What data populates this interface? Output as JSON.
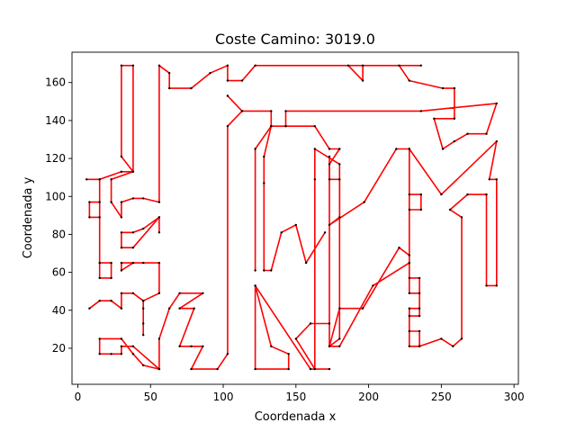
{
  "chart_data": {
    "type": "line",
    "title": "Coste Camino: 3019.0",
    "xlabel": "Coordenada x",
    "ylabel": "Coordenada y",
    "xlim": [
      -4,
      303
    ],
    "ylim": [
      1,
      176
    ],
    "xticks": [
      0,
      50,
      100,
      150,
      200,
      250,
      300
    ],
    "yticks": [
      20,
      40,
      60,
      80,
      100,
      120,
      140,
      160
    ],
    "grid": false,
    "colors": {
      "path": "#ff0000",
      "points": "#000000"
    },
    "series": [
      {
        "points": [
          [
            6,
            109
          ],
          [
            15,
            109
          ],
          [
            15,
            57
          ],
          [
            23,
            57
          ],
          [
            23,
            65
          ],
          [
            15,
            65
          ],
          [
            15,
            89
          ],
          [
            8,
            89
          ],
          [
            8,
            97
          ],
          [
            15,
            97
          ],
          [
            15,
            109
          ],
          [
            30,
            113
          ],
          [
            38,
            113
          ],
          [
            30,
            121
          ],
          [
            30,
            169
          ],
          [
            38,
            169
          ],
          [
            38,
            113
          ],
          [
            23,
            109
          ],
          [
            23,
            97
          ],
          [
            30,
            89
          ],
          [
            30,
            97
          ],
          [
            38,
            99
          ],
          [
            45,
            99
          ],
          [
            56,
            97
          ],
          [
            56,
            169
          ],
          [
            63,
            165
          ],
          [
            63,
            157
          ],
          [
            78,
            157
          ],
          [
            91,
            165
          ],
          [
            103,
            169
          ],
          [
            103,
            161
          ],
          [
            113,
            161
          ],
          [
            122,
            169
          ],
          [
            196,
            169
          ],
          [
            196,
            161
          ],
          [
            186,
            169
          ],
          [
            236,
            169
          ],
          [
            221,
            169
          ],
          [
            228,
            161
          ],
          [
            251,
            157
          ],
          [
            259,
            157
          ],
          [
            259,
            141
          ],
          [
            245,
            141
          ],
          [
            251,
            125
          ],
          [
            259,
            129
          ],
          [
            268,
            133
          ],
          [
            281,
            133
          ],
          [
            288,
            149
          ],
          [
            236,
            145
          ],
          [
            143,
            145
          ],
          [
            143,
            137
          ],
          [
            163,
            137
          ],
          [
            173,
            125
          ],
          [
            180,
            125
          ],
          [
            173,
            117
          ],
          [
            173,
            109
          ],
          [
            180,
            109
          ],
          [
            180,
            89
          ],
          [
            173,
            85
          ],
          [
            197,
            97
          ],
          [
            219,
            125
          ],
          [
            228,
            125
          ],
          [
            228,
            69
          ],
          [
            221,
            73
          ],
          [
            196,
            41
          ],
          [
            180,
            41
          ],
          [
            173,
            21
          ],
          [
            180,
            21
          ],
          [
            203,
            53
          ],
          [
            228,
            65
          ],
          [
            228,
            57
          ],
          [
            235,
            57
          ],
          [
            235,
            41
          ],
          [
            228,
            41
          ],
          [
            228,
            21
          ],
          [
            235,
            21
          ],
          [
            235,
            29
          ],
          [
            228,
            29
          ],
          [
            228,
            37
          ],
          [
            235,
            37
          ],
          [
            235,
            49
          ],
          [
            228,
            49
          ],
          [
            228,
            93
          ],
          [
            236,
            93
          ],
          [
            236,
            101
          ],
          [
            228,
            101
          ],
          [
            228,
            125
          ],
          [
            250,
            101
          ],
          [
            288,
            129
          ],
          [
            283,
            109
          ],
          [
            288,
            109
          ],
          [
            288,
            53
          ],
          [
            281,
            53
          ],
          [
            281,
            101
          ],
          [
            268,
            101
          ],
          [
            256,
            93
          ],
          [
            264,
            89
          ],
          [
            264,
            25
          ],
          [
            258,
            21
          ],
          [
            250,
            25
          ],
          [
            235,
            21
          ]
        ]
      },
      {
        "points": [
          [
            113,
            145
          ],
          [
            133,
            145
          ],
          [
            133,
            137
          ],
          [
            143,
            137
          ]
        ]
      },
      {
        "points": [
          [
            103,
            153
          ],
          [
            113,
            145
          ],
          [
            103,
            137
          ],
          [
            103,
            17
          ],
          [
            96,
            9
          ],
          [
            78,
            9
          ],
          [
            86,
            21
          ],
          [
            78,
            21
          ],
          [
            70,
            21
          ],
          [
            80,
            41
          ],
          [
            70,
            41
          ],
          [
            86,
            49
          ],
          [
            70,
            49
          ],
          [
            63,
            41
          ],
          [
            56,
            25
          ],
          [
            56,
            9
          ],
          [
            38,
            21
          ],
          [
            30,
            21
          ],
          [
            30,
            17
          ],
          [
            23,
            17
          ],
          [
            15,
            17
          ],
          [
            15,
            25
          ],
          [
            30,
            25
          ],
          [
            38,
            17
          ],
          [
            45,
            11
          ],
          [
            56,
            9
          ]
        ]
      },
      {
        "points": [
          [
            56,
            81
          ],
          [
            56,
            89
          ],
          [
            38,
            73
          ],
          [
            30,
            73
          ],
          [
            30,
            81
          ],
          [
            38,
            81
          ],
          [
            45,
            83
          ],
          [
            56,
            89
          ]
        ]
      },
      {
        "points": [
          [
            8,
            41
          ],
          [
            15,
            45
          ],
          [
            23,
            45
          ],
          [
            30,
            41
          ],
          [
            30,
            49
          ],
          [
            38,
            49
          ],
          [
            45,
            45
          ],
          [
            45,
            41
          ],
          [
            45,
            27
          ],
          [
            45,
            33
          ],
          [
            45,
            45
          ],
          [
            56,
            49
          ],
          [
            56,
            65
          ],
          [
            45,
            65
          ],
          [
            38,
            65
          ],
          [
            30,
            61
          ],
          [
            30,
            65
          ],
          [
            38,
            65
          ]
        ]
      },
      {
        "points": [
          [
            122,
            53
          ],
          [
            122,
            9
          ],
          [
            145,
            9
          ],
          [
            145,
            17
          ],
          [
            133,
            21
          ],
          [
            122,
            53
          ],
          [
            160,
            9
          ],
          [
            173,
            9
          ]
        ]
      },
      {
        "points": [
          [
            173,
            121
          ],
          [
            173,
            21
          ],
          [
            180,
            25
          ],
          [
            180,
            117
          ],
          [
            163,
            125
          ],
          [
            163,
            109
          ],
          [
            163,
            9
          ],
          [
            150,
            25
          ],
          [
            160,
            33
          ],
          [
            173,
            33
          ]
        ]
      },
      {
        "points": [
          [
            122,
            61
          ],
          [
            122,
            125
          ],
          [
            133,
            137
          ],
          [
            128,
            121
          ],
          [
            128,
            107
          ],
          [
            128,
            61
          ],
          [
            133,
            61
          ],
          [
            140,
            81
          ],
          [
            150,
            85
          ],
          [
            157,
            65
          ],
          [
            170,
            81
          ]
        ]
      }
    ]
  }
}
